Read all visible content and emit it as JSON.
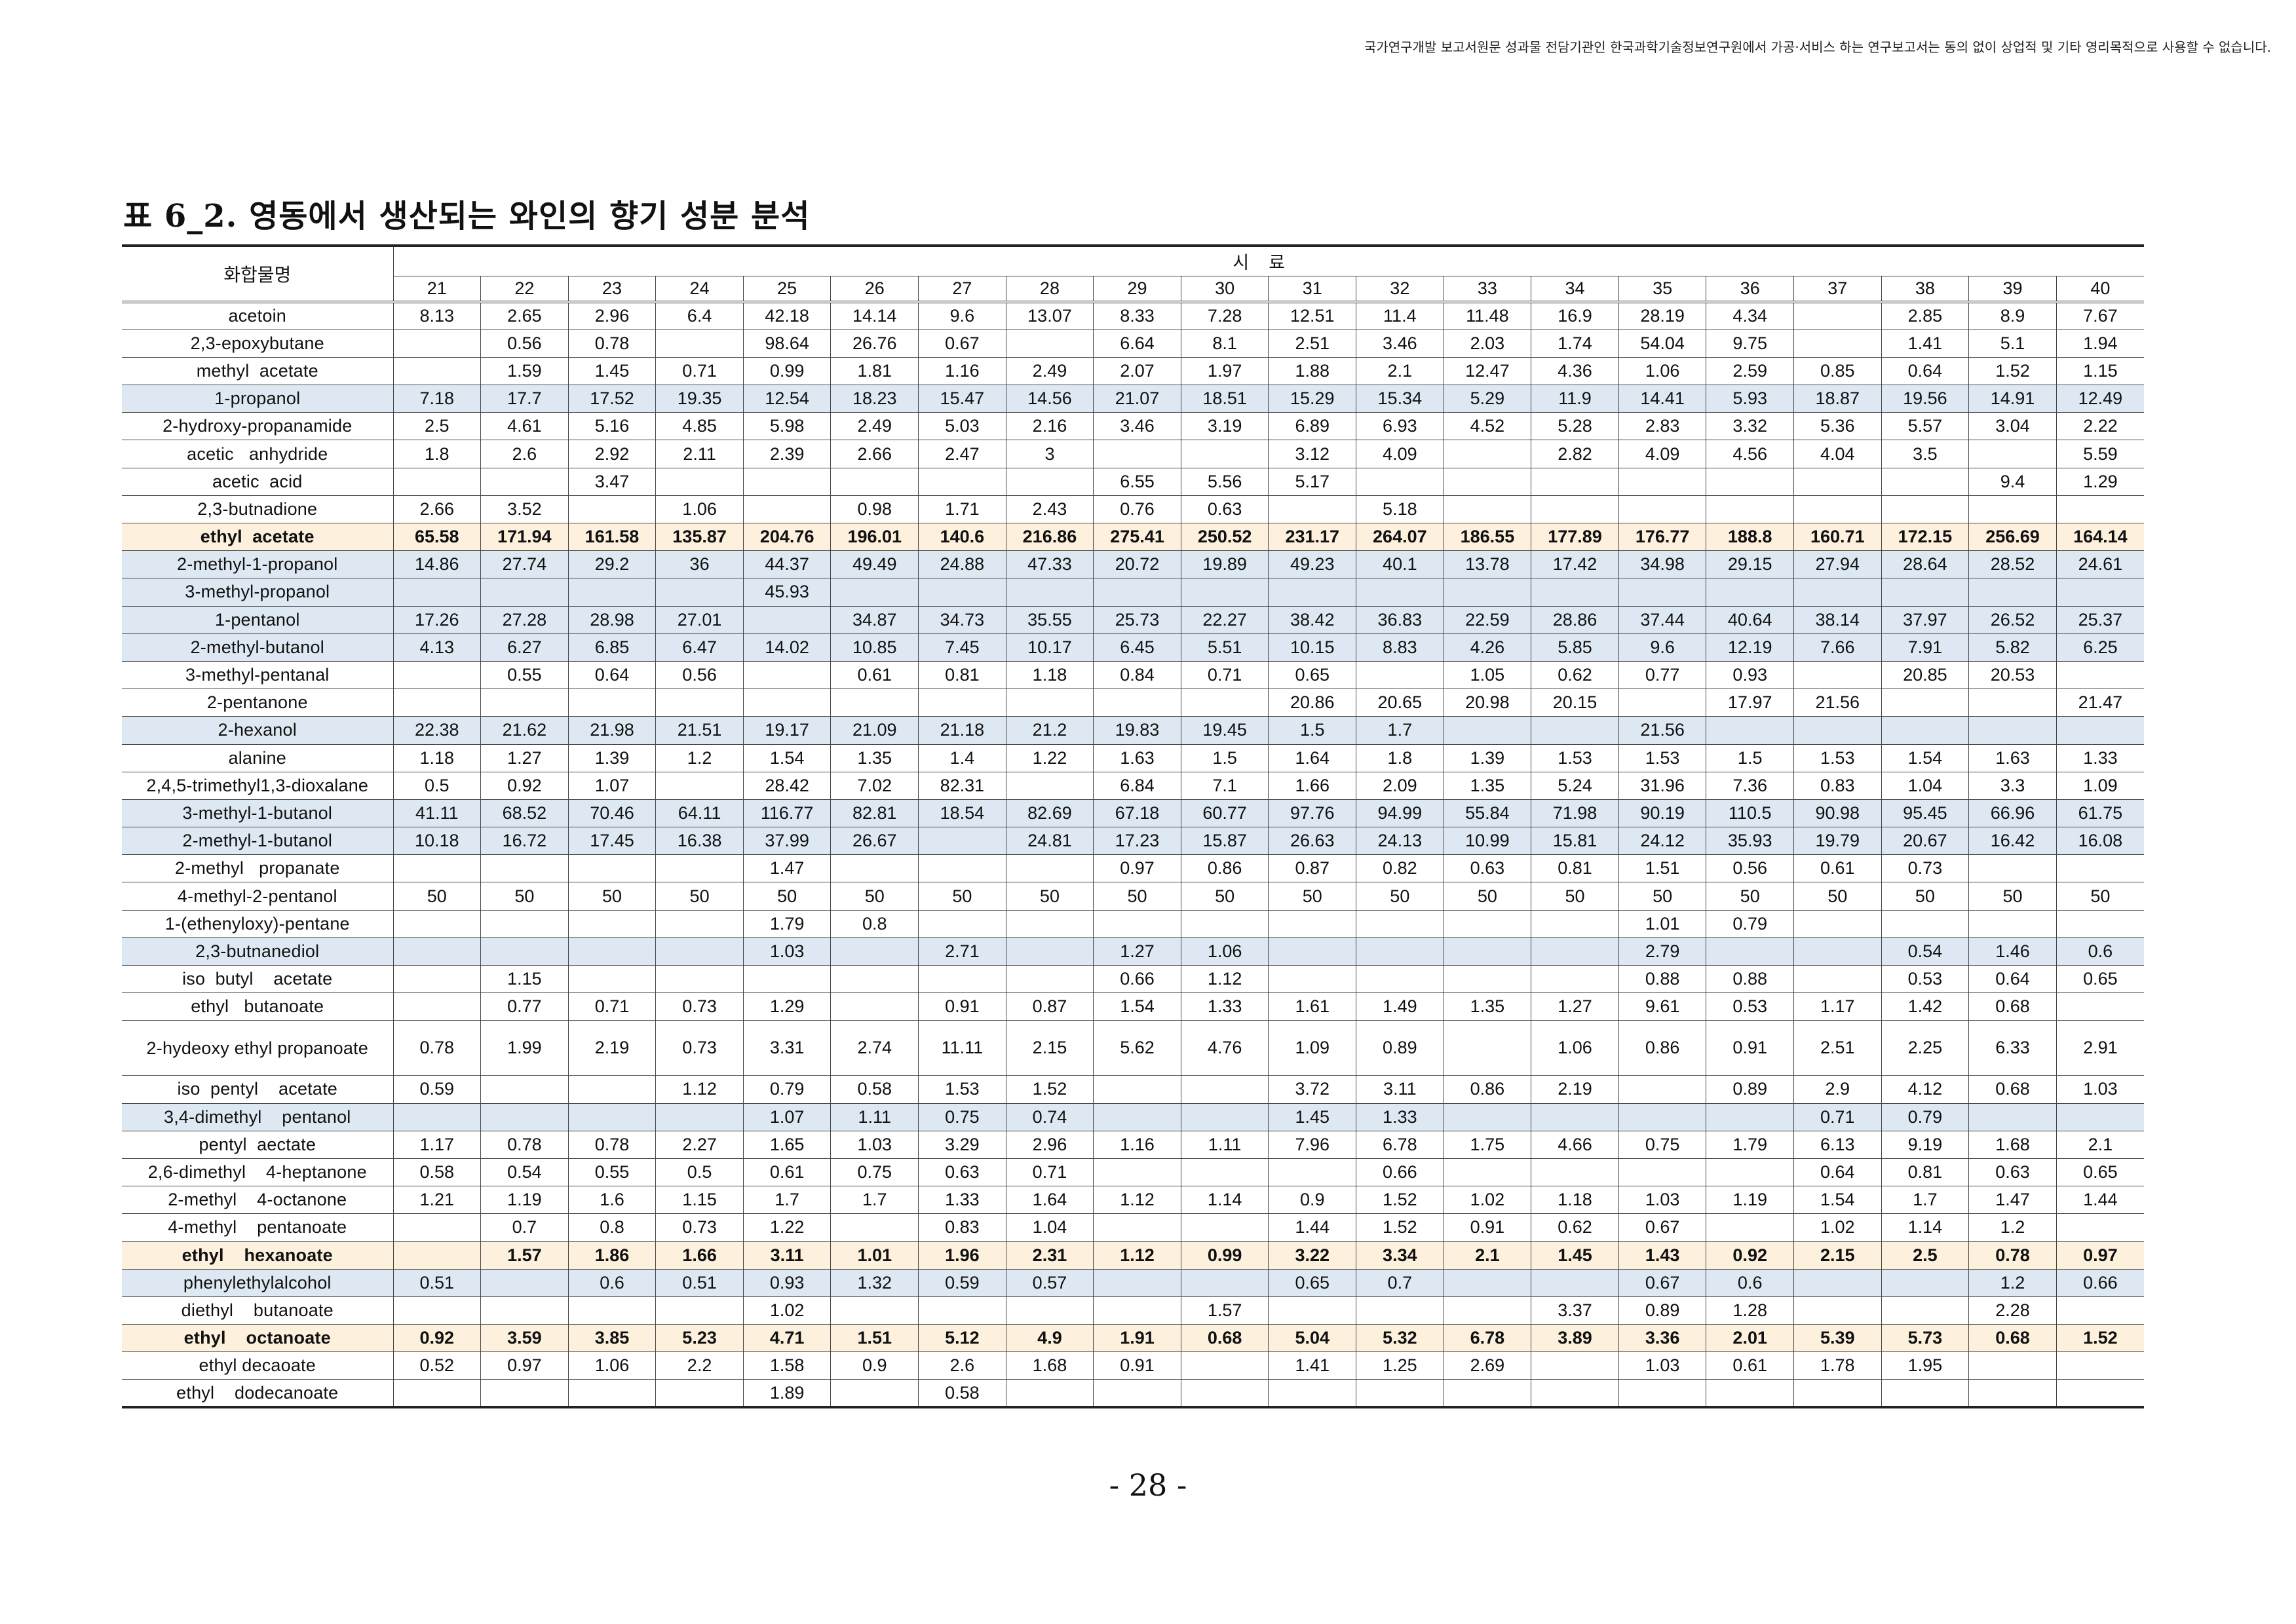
{
  "notice": "국가연구개발 보고서원문 성과물 전담기관인 한국과학기술정보연구원에서 가공·서비스 하는 연구보고서는 동의 없이 상업적 및 기타 영리목적으로 사용할 수 없습니다.",
  "title": "표 6_2. 영동에서 생산되는 와인의 향기 성분 분석",
  "table": {
    "name_header": "화합물명",
    "group_header": "시료",
    "samples": [
      "21",
      "22",
      "23",
      "24",
      "25",
      "26",
      "27",
      "28",
      "29",
      "30",
      "31",
      "32",
      "33",
      "34",
      "35",
      "36",
      "37",
      "38",
      "39",
      "40"
    ],
    "rows": [
      {
        "name": "acetoin",
        "hl": "",
        "bold": false,
        "v": [
          "8.13",
          "2.65",
          "2.96",
          "6.4",
          "42.18",
          "14.14",
          "9.6",
          "13.07",
          "8.33",
          "7.28",
          "12.51",
          "11.4",
          "11.48",
          "16.9",
          "28.19",
          "4.34",
          "",
          "2.85",
          "8.9",
          "7.67"
        ]
      },
      {
        "name": "2,3-epoxybutane",
        "hl": "",
        "bold": false,
        "v": [
          "",
          "0.56",
          "0.78",
          "",
          "98.64",
          "26.76",
          "0.67",
          "",
          "6.64",
          "8.1",
          "2.51",
          "3.46",
          "2.03",
          "1.74",
          "54.04",
          "9.75",
          "",
          "1.41",
          "5.1",
          "1.94"
        ]
      },
      {
        "name": "methyl  acetate",
        "hl": "",
        "bold": false,
        "v": [
          "",
          "1.59",
          "1.45",
          "0.71",
          "0.99",
          "1.81",
          "1.16",
          "2.49",
          "2.07",
          "1.97",
          "1.88",
          "2.1",
          "12.47",
          "4.36",
          "1.06",
          "2.59",
          "0.85",
          "0.64",
          "1.52",
          "1.15"
        ]
      },
      {
        "name": "1-propanol",
        "hl": "blue",
        "bold": false,
        "v": [
          "7.18",
          "17.7",
          "17.52",
          "19.35",
          "12.54",
          "18.23",
          "15.47",
          "14.56",
          "21.07",
          "18.51",
          "15.29",
          "15.34",
          "5.29",
          "11.9",
          "14.41",
          "5.93",
          "18.87",
          "19.56",
          "14.91",
          "12.49"
        ]
      },
      {
        "name": "2-hydroxy-propanamide",
        "hl": "",
        "bold": false,
        "v": [
          "2.5",
          "4.61",
          "5.16",
          "4.85",
          "5.98",
          "2.49",
          "5.03",
          "2.16",
          "3.46",
          "3.19",
          "6.89",
          "6.93",
          "4.52",
          "5.28",
          "2.83",
          "3.32",
          "5.36",
          "5.57",
          "3.04",
          "2.22"
        ]
      },
      {
        "name": "acetic   anhydride",
        "hl": "",
        "bold": false,
        "v": [
          "1.8",
          "2.6",
          "2.92",
          "2.11",
          "2.39",
          "2.66",
          "2.47",
          "3",
          "",
          "",
          "3.12",
          "4.09",
          "",
          "2.82",
          "4.09",
          "4.56",
          "4.04",
          "3.5",
          "",
          "5.59"
        ]
      },
      {
        "name": "acetic  acid",
        "hl": "",
        "bold": false,
        "v": [
          "",
          "",
          "3.47",
          "",
          "",
          "",
          "",
          "",
          "6.55",
          "5.56",
          "5.17",
          "",
          "",
          "",
          "",
          "",
          "",
          "",
          "9.4",
          "1.29"
        ]
      },
      {
        "name": "2,3-butnadione",
        "hl": "",
        "bold": false,
        "v": [
          "2.66",
          "3.52",
          "",
          "1.06",
          "",
          "0.98",
          "1.71",
          "2.43",
          "0.76",
          "0.63",
          "",
          "5.18",
          "",
          "",
          "",
          "",
          "",
          "",
          "",
          ""
        ]
      },
      {
        "name": "ethyl  acetate",
        "hl": "cream",
        "bold": true,
        "v": [
          "65.58",
          "171.94",
          "161.58",
          "135.87",
          "204.76",
          "196.01",
          "140.6",
          "216.86",
          "275.41",
          "250.52",
          "231.17",
          "264.07",
          "186.55",
          "177.89",
          "176.77",
          "188.8",
          "160.71",
          "172.15",
          "256.69",
          "164.14"
        ]
      },
      {
        "name": "2-methyl-1-propanol",
        "hl": "blue",
        "bold": false,
        "v": [
          "14.86",
          "27.74",
          "29.2",
          "36",
          "44.37",
          "49.49",
          "24.88",
          "47.33",
          "20.72",
          "19.89",
          "49.23",
          "40.1",
          "13.78",
          "17.42",
          "34.98",
          "29.15",
          "27.94",
          "28.64",
          "28.52",
          "24.61"
        ]
      },
      {
        "name": "3-methyl-propanol",
        "hl": "blue",
        "bold": false,
        "v": [
          "",
          "",
          "",
          "",
          "45.93",
          "",
          "",
          "",
          "",
          "",
          "",
          "",
          "",
          "",
          "",
          "",
          "",
          "",
          "",
          ""
        ]
      },
      {
        "name": "1-pentanol",
        "hl": "blue",
        "bold": false,
        "v": [
          "17.26",
          "27.28",
          "28.98",
          "27.01",
          "",
          "34.87",
          "34.73",
          "35.55",
          "25.73",
          "22.27",
          "38.42",
          "36.83",
          "22.59",
          "28.86",
          "37.44",
          "40.64",
          "38.14",
          "37.97",
          "26.52",
          "25.37"
        ]
      },
      {
        "name": "2-methyl-butanol",
        "hl": "blue",
        "bold": false,
        "v": [
          "4.13",
          "6.27",
          "6.85",
          "6.47",
          "14.02",
          "10.85",
          "7.45",
          "10.17",
          "6.45",
          "5.51",
          "10.15",
          "8.83",
          "4.26",
          "5.85",
          "9.6",
          "12.19",
          "7.66",
          "7.91",
          "5.82",
          "6.25"
        ]
      },
      {
        "name": "3-methyl-pentanal",
        "hl": "",
        "bold": false,
        "v": [
          "",
          "0.55",
          "0.64",
          "0.56",
          "",
          "0.61",
          "0.81",
          "1.18",
          "0.84",
          "0.71",
          "0.65",
          "",
          "1.05",
          "0.62",
          "0.77",
          "0.93",
          "",
          "20.85",
          "20.53",
          ""
        ]
      },
      {
        "name": "2-pentanone",
        "hl": "",
        "bold": false,
        "v": [
          "",
          "",
          "",
          "",
          "",
          "",
          "",
          "",
          "",
          "",
          "20.86",
          "20.65",
          "20.98",
          "20.15",
          "",
          "17.97",
          "21.56",
          "",
          "",
          "21.47"
        ]
      },
      {
        "name": "2-hexanol",
        "hl": "blue",
        "bold": false,
        "v": [
          "22.38",
          "21.62",
          "21.98",
          "21.51",
          "19.17",
          "21.09",
          "21.18",
          "21.2",
          "19.83",
          "19.45",
          "1.5",
          "1.7",
          "",
          "",
          "21.56",
          "",
          "",
          "",
          "",
          ""
        ]
      },
      {
        "name": "alanine",
        "hl": "",
        "bold": false,
        "v": [
          "1.18",
          "1.27",
          "1.39",
          "1.2",
          "1.54",
          "1.35",
          "1.4",
          "1.22",
          "1.63",
          "1.5",
          "1.64",
          "1.8",
          "1.39",
          "1.53",
          "1.53",
          "1.5",
          "1.53",
          "1.54",
          "1.63",
          "1.33"
        ]
      },
      {
        "name": "2,4,5-trimethyl1,3-dioxalane",
        "hl": "",
        "bold": false,
        "v": [
          "0.5",
          "0.92",
          "1.07",
          "",
          "28.42",
          "7.02",
          "82.31",
          "",
          "6.84",
          "7.1",
          "1.66",
          "2.09",
          "1.35",
          "5.24",
          "31.96",
          "7.36",
          "0.83",
          "1.04",
          "3.3",
          "1.09"
        ]
      },
      {
        "name": "3-methyl-1-butanol",
        "hl": "blue",
        "bold": false,
        "v": [
          "41.11",
          "68.52",
          "70.46",
          "64.11",
          "116.77",
          "82.81",
          "18.54",
          "82.69",
          "67.18",
          "60.77",
          "97.76",
          "94.99",
          "55.84",
          "71.98",
          "90.19",
          "110.5",
          "90.98",
          "95.45",
          "66.96",
          "61.75"
        ]
      },
      {
        "name": "2-methyl-1-butanol",
        "hl": "blue",
        "bold": false,
        "v": [
          "10.18",
          "16.72",
          "17.45",
          "16.38",
          "37.99",
          "26.67",
          "",
          "24.81",
          "17.23",
          "15.87",
          "26.63",
          "24.13",
          "10.99",
          "15.81",
          "24.12",
          "35.93",
          "19.79",
          "20.67",
          "16.42",
          "16.08"
        ]
      },
      {
        "name": "2-methyl   propanate",
        "hl": "",
        "bold": false,
        "v": [
          "",
          "",
          "",
          "",
          "1.47",
          "",
          "",
          "",
          "0.97",
          "0.86",
          "0.87",
          "0.82",
          "0.63",
          "0.81",
          "1.51",
          "0.56",
          "0.61",
          "0.73",
          "",
          ""
        ]
      },
      {
        "name": "4-methyl-2-pentanol",
        "hl": "",
        "bold": false,
        "v": [
          "50",
          "50",
          "50",
          "50",
          "50",
          "50",
          "50",
          "50",
          "50",
          "50",
          "50",
          "50",
          "50",
          "50",
          "50",
          "50",
          "50",
          "50",
          "50",
          "50"
        ]
      },
      {
        "name": "1-(ethenyloxy)-pentane",
        "hl": "",
        "bold": false,
        "v": [
          "",
          "",
          "",
          "",
          "1.79",
          "0.8",
          "",
          "",
          "",
          "",
          "",
          "",
          "",
          "",
          "1.01",
          "0.79",
          "",
          "",
          "",
          ""
        ]
      },
      {
        "name": "2,3-butnanediol",
        "hl": "blue",
        "bold": false,
        "v": [
          "",
          "",
          "",
          "",
          "1.03",
          "",
          "2.71",
          "",
          "1.27",
          "1.06",
          "",
          "",
          "",
          "",
          "2.79",
          "",
          "",
          "0.54",
          "1.46",
          "0.6"
        ]
      },
      {
        "name": "iso  butyl    acetate",
        "hl": "",
        "bold": false,
        "v": [
          "",
          "1.15",
          "",
          "",
          "",
          "",
          "",
          "",
          "0.66",
          "1.12",
          "",
          "",
          "",
          "",
          "0.88",
          "0.88",
          "",
          "0.53",
          "0.64",
          "0.65"
        ]
      },
      {
        "name": "ethyl   butanoate",
        "hl": "",
        "bold": false,
        "v": [
          "",
          "0.77",
          "0.71",
          "0.73",
          "1.29",
          "",
          "0.91",
          "0.87",
          "1.54",
          "1.33",
          "1.61",
          "1.49",
          "1.35",
          "1.27",
          "9.61",
          "0.53",
          "1.17",
          "1.42",
          "0.68",
          ""
        ]
      },
      {
        "name": "2-hydeoxy    ethyl propanoate",
        "hl": "",
        "bold": false,
        "tall": true,
        "v": [
          "0.78",
          "1.99",
          "2.19",
          "0.73",
          "3.31",
          "2.74",
          "11.11",
          "2.15",
          "5.62",
          "4.76",
          "1.09",
          "0.89",
          "",
          "1.06",
          "0.86",
          "0.91",
          "2.51",
          "2.25",
          "6.33",
          "2.91"
        ]
      },
      {
        "name": "iso  pentyl    acetate",
        "hl": "",
        "bold": false,
        "v": [
          "0.59",
          "",
          "",
          "1.12",
          "0.79",
          "0.58",
          "1.53",
          "1.52",
          "",
          "",
          "3.72",
          "3.11",
          "0.86",
          "2.19",
          "",
          "0.89",
          "2.9",
          "4.12",
          "0.68",
          "1.03"
        ]
      },
      {
        "name": "3,4-dimethyl    pentanol",
        "hl": "blue",
        "bold": false,
        "v": [
          "",
          "",
          "",
          "",
          "1.07",
          "1.11",
          "0.75",
          "0.74",
          "",
          "",
          "1.45",
          "1.33",
          "",
          "",
          "",
          "",
          "0.71",
          "0.79",
          "",
          ""
        ]
      },
      {
        "name": "pentyl  aectate",
        "hl": "",
        "bold": false,
        "v": [
          "1.17",
          "0.78",
          "0.78",
          "2.27",
          "1.65",
          "1.03",
          "3.29",
          "2.96",
          "1.16",
          "1.11",
          "7.96",
          "6.78",
          "1.75",
          "4.66",
          "0.75",
          "1.79",
          "6.13",
          "9.19",
          "1.68",
          "2.1"
        ]
      },
      {
        "name": "2,6-dimethyl    4-heptanone",
        "hl": "",
        "bold": false,
        "v": [
          "0.58",
          "0.54",
          "0.55",
          "0.5",
          "0.61",
          "0.75",
          "0.63",
          "0.71",
          "",
          "",
          "",
          "0.66",
          "",
          "",
          "",
          "",
          "0.64",
          "0.81",
          "0.63",
          "0.65"
        ]
      },
      {
        "name": "2-methyl    4-octanone",
        "hl": "",
        "bold": false,
        "v": [
          "1.21",
          "1.19",
          "1.6",
          "1.15",
          "1.7",
          "1.7",
          "1.33",
          "1.64",
          "1.12",
          "1.14",
          "0.9",
          "1.52",
          "1.02",
          "1.18",
          "1.03",
          "1.19",
          "1.54",
          "1.7",
          "1.47",
          "1.44"
        ]
      },
      {
        "name": "4-methyl    pentanoate",
        "hl": "",
        "bold": false,
        "v": [
          "",
          "0.7",
          "0.8",
          "0.73",
          "1.22",
          "",
          "0.83",
          "1.04",
          "",
          "",
          "1.44",
          "1.52",
          "0.91",
          "0.62",
          "0.67",
          "",
          "1.02",
          "1.14",
          "1.2",
          ""
        ]
      },
      {
        "name": "ethyl    hexanoate",
        "hl": "cream",
        "bold": true,
        "v": [
          "",
          "1.57",
          "1.86",
          "1.66",
          "3.11",
          "1.01",
          "1.96",
          "2.31",
          "1.12",
          "0.99",
          "3.22",
          "3.34",
          "2.1",
          "1.45",
          "1.43",
          "0.92",
          "2.15",
          "2.5",
          "0.78",
          "0.97"
        ]
      },
      {
        "name": "phenylethylalcohol",
        "hl": "blue",
        "bold": false,
        "v": [
          "0.51",
          "",
          "0.6",
          "0.51",
          "0.93",
          "1.32",
          "0.59",
          "0.57",
          "",
          "",
          "0.65",
          "0.7",
          "",
          "",
          "0.67",
          "0.6",
          "",
          "",
          "1.2",
          "0.66"
        ]
      },
      {
        "name": "diethyl    butanoate",
        "hl": "",
        "bold": false,
        "v": [
          "",
          "",
          "",
          "",
          "1.02",
          "",
          "",
          "",
          "",
          "1.57",
          "",
          "",
          "",
          "3.37",
          "0.89",
          "1.28",
          "",
          "",
          "2.28",
          ""
        ]
      },
      {
        "name": "ethyl    octanoate",
        "hl": "cream",
        "bold": true,
        "v": [
          "0.92",
          "3.59",
          "3.85",
          "5.23",
          "4.71",
          "1.51",
          "5.12",
          "4.9",
          "1.91",
          "0.68",
          "5.04",
          "5.32",
          "6.78",
          "3.89",
          "3.36",
          "2.01",
          "5.39",
          "5.73",
          "0.68",
          "1.52"
        ]
      },
      {
        "name": "ethyl decaoate",
        "hl": "",
        "bold": false,
        "v": [
          "0.52",
          "0.97",
          "1.06",
          "2.2",
          "1.58",
          "0.9",
          "2.6",
          "1.68",
          "0.91",
          "",
          "1.41",
          "1.25",
          "2.69",
          "",
          "1.03",
          "0.61",
          "1.78",
          "1.95",
          "",
          ""
        ]
      },
      {
        "name": "ethyl    dodecanoate",
        "hl": "",
        "bold": false,
        "v": [
          "",
          "",
          "",
          "",
          "1.89",
          "",
          "0.58",
          "",
          "",
          "",
          "",
          "",
          "",
          "",
          "",
          "",
          "",
          "",
          "",
          ""
        ]
      }
    ]
  },
  "page_number": "- 28 -"
}
